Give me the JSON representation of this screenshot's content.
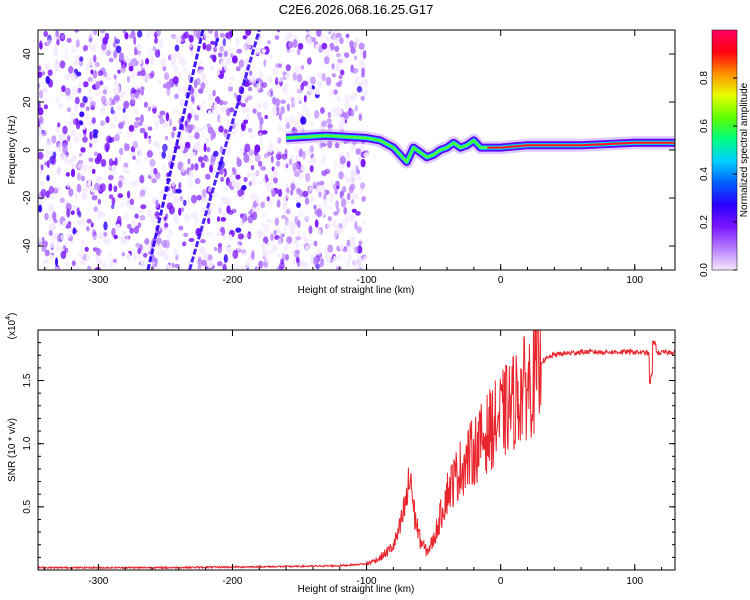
{
  "title": "C2E6.2026.068.16.25.G17",
  "chart_data": [
    {
      "type": "heatmap",
      "xlabel": "Height of straight line (km)",
      "ylabel": "Frequency (Hz)",
      "xlim": [
        -345,
        130
      ],
      "ylim": [
        -50,
        50
      ],
      "xticks": [
        -300,
        -200,
        -100,
        0,
        100
      ],
      "yticks": [
        -40,
        -20,
        0,
        20,
        40
      ],
      "colorbar": {
        "label": "Normalized spectral amplitude",
        "range": [
          0,
          1
        ],
        "ticks": [
          "0.0",
          "0.2",
          "0.4",
          "0.6",
          "0.8"
        ],
        "colors": [
          "#f4eaff",
          "#b57cff",
          "#7a14ff",
          "#2a00ff",
          "#0060ff",
          "#00d0ff",
          "#00ff80",
          "#60ff00",
          "#e8ff00",
          "#ff9000",
          "#ff0010",
          "#ff0066"
        ]
      },
      "main_line": [
        [
          -160,
          5
        ],
        [
          -130,
          6
        ],
        [
          -100,
          5
        ],
        [
          -90,
          4
        ],
        [
          -80,
          1
        ],
        [
          -75,
          -2
        ],
        [
          -70,
          -5
        ],
        [
          -65,
          1
        ],
        [
          -60,
          -1
        ],
        [
          -55,
          -3
        ],
        [
          -50,
          -2
        ],
        [
          -45,
          0
        ],
        [
          -40,
          1
        ],
        [
          -35,
          3
        ],
        [
          -30,
          1
        ],
        [
          -25,
          2
        ],
        [
          -20,
          4
        ],
        [
          -15,
          1
        ],
        [
          -10,
          1
        ],
        [
          -5,
          1
        ],
        [
          0,
          1
        ],
        [
          20,
          2
        ],
        [
          60,
          2
        ],
        [
          100,
          3
        ],
        [
          130,
          3
        ]
      ],
      "streaks": [
        {
          "x": [
            -263,
            -222
          ],
          "y": [
            -50,
            50
          ]
        },
        {
          "x": [
            -232,
            -180
          ],
          "y": [
            -50,
            50
          ]
        }
      ]
    },
    {
      "type": "line",
      "xlabel": "Height of straight line (km)",
      "ylabel": "SNR (10 * v/v)",
      "scale_label": "(x10",
      "scale_exp": "4",
      "scale_close": ")",
      "xlim": [
        -345,
        130
      ],
      "ylim": [
        0,
        1.9
      ],
      "xticks": [
        -300,
        -200,
        -100,
        0,
        100
      ],
      "yticks": [
        "0.5",
        "1.0",
        "1.5"
      ],
      "ytick_values": [
        0.5,
        1.0,
        1.5
      ],
      "color": "#e8252c",
      "envelope": [
        [
          -345,
          0.02
        ],
        [
          -250,
          0.02
        ],
        [
          -200,
          0.025
        ],
        [
          -150,
          0.03
        ],
        [
          -120,
          0.035
        ],
        [
          -100,
          0.05
        ],
        [
          -90,
          0.1
        ],
        [
          -80,
          0.2
        ],
        [
          -75,
          0.35
        ],
        [
          -70,
          0.6
        ],
        [
          -67,
          0.8
        ],
        [
          -65,
          0.5
        ],
        [
          -60,
          0.25
        ],
        [
          -55,
          0.15
        ],
        [
          -50,
          0.25
        ],
        [
          -45,
          0.45
        ],
        [
          -40,
          0.65
        ],
        [
          -30,
          0.85
        ],
        [
          -20,
          1.0
        ],
        [
          -10,
          1.15
        ],
        [
          0,
          1.28
        ],
        [
          10,
          1.42
        ],
        [
          20,
          1.55
        ],
        [
          30,
          1.65
        ],
        [
          40,
          1.71
        ],
        [
          60,
          1.73
        ],
        [
          80,
          1.73
        ],
        [
          100,
          1.73
        ],
        [
          110,
          1.72
        ],
        [
          130,
          1.73
        ]
      ]
    }
  ]
}
